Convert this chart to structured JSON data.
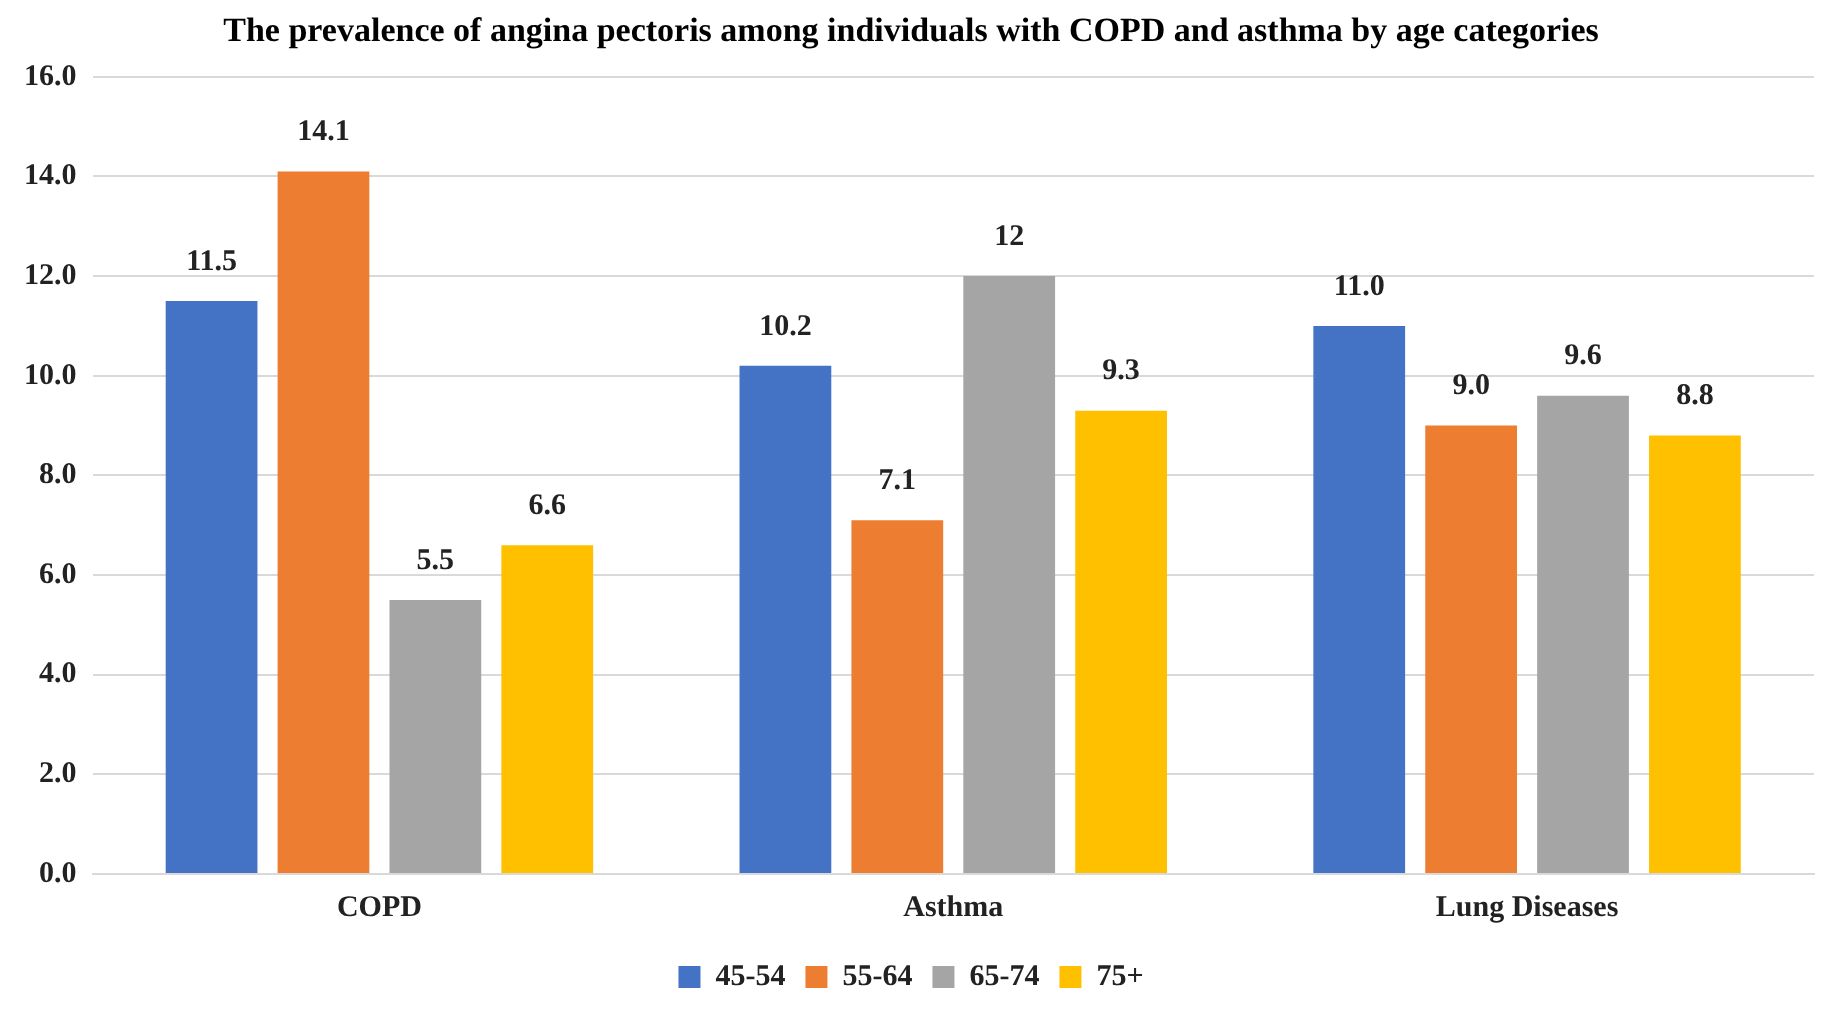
{
  "chart_data": {
    "type": "bar",
    "title": "The prevalence of angina pectoris among individuals with COPD and asthma by age categories",
    "categories": [
      "COPD",
      "Asthma",
      "Lung Diseases"
    ],
    "series": [
      {
        "name": "45-54",
        "color": "#4472c4",
        "values": [
          11.5,
          10.2,
          11.0
        ],
        "value_labels": [
          "11.5",
          "10.2",
          "11.0"
        ]
      },
      {
        "name": "55-64",
        "color": "#ed7d31",
        "values": [
          14.1,
          7.1,
          9.0
        ],
        "value_labels": [
          "14.1",
          "7.1",
          "9.0"
        ]
      },
      {
        "name": "65-74",
        "color": "#a5a5a5",
        "values": [
          5.5,
          12,
          9.6
        ],
        "value_labels": [
          "5.5",
          "12",
          "9.6"
        ]
      },
      {
        "name": "75+",
        "color": "#ffc000",
        "values": [
          6.6,
          9.3,
          8.8
        ],
        "value_labels": [
          "6.6",
          "9.3",
          "8.8"
        ]
      }
    ],
    "ylim": [
      0,
      16
    ],
    "yticks": [
      {
        "value": 0,
        "label": "0.0"
      },
      {
        "value": 2,
        "label": "2.0"
      },
      {
        "value": 4,
        "label": "4.0"
      },
      {
        "value": 6,
        "label": "6.0"
      },
      {
        "value": 8,
        "label": "8.0"
      },
      {
        "value": 10,
        "label": "10.0"
      },
      {
        "value": 12,
        "label": "12.0"
      },
      {
        "value": 14,
        "label": "14.0"
      },
      {
        "value": 16,
        "label": "16.0"
      }
    ],
    "grid": "y",
    "legend": "bottom"
  }
}
